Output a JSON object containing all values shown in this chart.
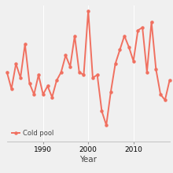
{
  "years": [
    1982,
    1983,
    1984,
    1985,
    1986,
    1987,
    1988,
    1989,
    1990,
    1991,
    1992,
    1993,
    1994,
    1995,
    1996,
    1997,
    1998,
    1999,
    2000,
    2001,
    2002,
    2003,
    2004,
    2005,
    2006,
    2007,
    2008,
    2009,
    2010,
    2011,
    2012,
    2013,
    2014,
    2015,
    2016,
    2017,
    2018
  ],
  "values": [
    350,
    290,
    380,
    330,
    450,
    310,
    270,
    340,
    270,
    300,
    260,
    320,
    350,
    410,
    370,
    480,
    350,
    340,
    570,
    330,
    340,
    210,
    160,
    280,
    380,
    430,
    480,
    440,
    390,
    500,
    510,
    350,
    530,
    360,
    270,
    250,
    320
  ],
  "line_color": "#f07060",
  "marker": "o",
  "marker_size": 2.2,
  "line_width": 1.4,
  "xlabel": "Year",
  "legend_label": "Cold pool",
  "xlim": [
    1982,
    2018
  ],
  "ylim": [
    100,
    590
  ],
  "xticks": [
    1990,
    2000,
    2010
  ],
  "background_color": "#f0f0f0",
  "grid_color": "#ffffff",
  "grid_linewidth": 0.7,
  "tick_labelsize": 6.5,
  "xlabel_fontsize": 7.5
}
